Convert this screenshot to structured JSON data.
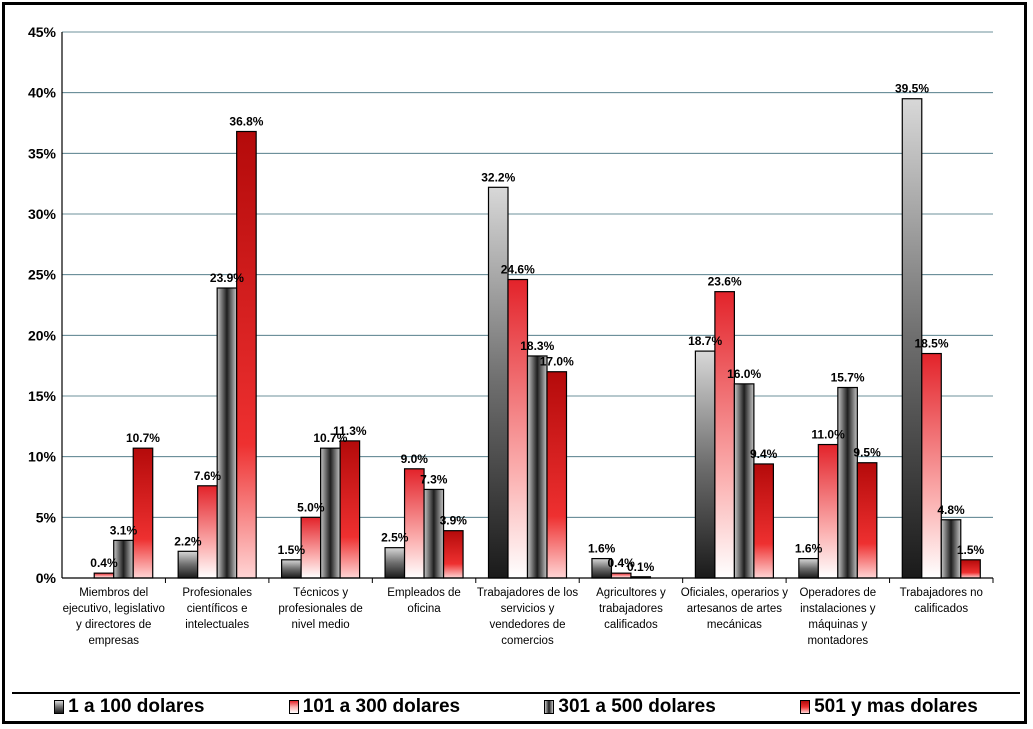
{
  "chart_data": {
    "type": "bar",
    "ylim": [
      0,
      45
    ],
    "yticks": [
      0,
      5,
      10,
      15,
      20,
      25,
      30,
      35,
      40,
      45
    ],
    "ytick_suffix": "%",
    "grid": true,
    "legend_position": "bottom",
    "categories": [
      [
        "Miembros del",
        "ejecutivo, legislativo",
        "y directores de",
        "empresas"
      ],
      [
        "Profesionales",
        "científicos e",
        "intelectuales"
      ],
      [
        "Técnicos y",
        "profesionales de",
        "nivel medio"
      ],
      [
        "Empleados de",
        "oficina"
      ],
      [
        "Trabajadores de los",
        "servicios y",
        "vendedores de",
        "comercios"
      ],
      [
        "Agricultores y",
        "trabajadores",
        "calificados"
      ],
      [
        "Oficiales, operarios y",
        "artesanos de artes",
        "mecánicas"
      ],
      [
        "Operadores de",
        "instalaciones y",
        "máquinas y",
        "montadores"
      ],
      [
        "Trabajadores no",
        "calificados"
      ]
    ],
    "series": [
      {
        "name": "1 a 100 dolares",
        "color": "#7a7a7a",
        "values": [
          0,
          2.2,
          1.5,
          2.5,
          32.2,
          1.6,
          18.7,
          1.6,
          39.5
        ],
        "labels": [
          "",
          "2.2%",
          "1.5%",
          "2.5%",
          "32.2%",
          "1.6%",
          "18.7%",
          "1.6%",
          "39.5%"
        ]
      },
      {
        "name": "101 a 300 dolares",
        "color": "#ee3b3b",
        "values": [
          0.4,
          7.6,
          5.0,
          9.0,
          24.6,
          0.4,
          23.6,
          11.0,
          18.5
        ],
        "labels": [
          "0.4%",
          "7.6%",
          "5.0%",
          "9.0%",
          "24.6%",
          "0.4%",
          "23.6%",
          "11.0%",
          "18.5%"
        ]
      },
      {
        "name": "301 a 500 dolares",
        "color": "#8f8f8f",
        "values": [
          3.1,
          23.9,
          10.7,
          7.3,
          18.3,
          0.1,
          16.0,
          15.7,
          4.8
        ],
        "labels": [
          "3.1%",
          "23.9%",
          "10.7%",
          "7.3%",
          "18.3%",
          "0.1%",
          "16.0%",
          "15.7%",
          "4.8%"
        ]
      },
      {
        "name": "501 y mas dolares",
        "color": "#d01010",
        "values": [
          10.7,
          36.8,
          11.3,
          3.9,
          17.0,
          0,
          9.4,
          9.5,
          1.5
        ],
        "labels": [
          "10.7%",
          "36.8%",
          "11.3%",
          "3.9%",
          "17.0%",
          "",
          "9.4%",
          "9.5%",
          "1.5%"
        ]
      }
    ]
  }
}
